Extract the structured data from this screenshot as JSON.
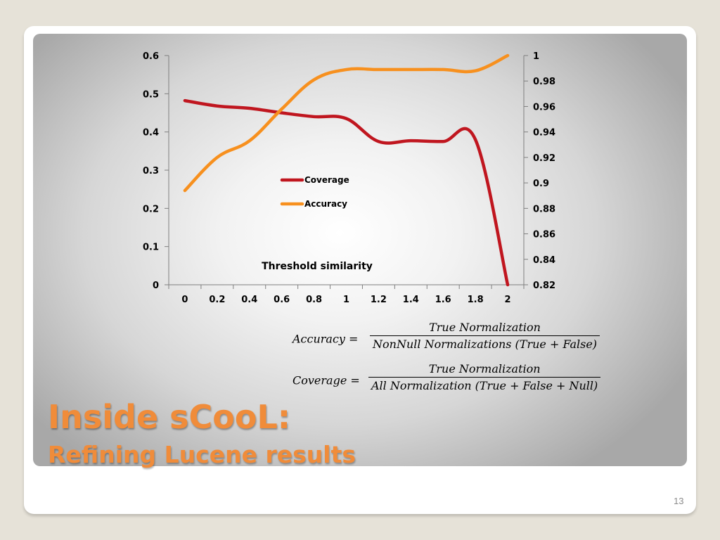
{
  "chart_data": {
    "type": "line",
    "xlabel": "Threshold similarity",
    "x_ticks": [
      "0",
      "0.2",
      "0.4",
      "0.6",
      "0.8",
      "1",
      "1.2",
      "1.4",
      "1.6",
      "1.8",
      "2"
    ],
    "x": [
      0,
      0.2,
      0.4,
      0.6,
      0.8,
      1.0,
      1.2,
      1.4,
      1.6,
      1.8,
      2.0
    ],
    "xlim": [
      0,
      2
    ],
    "y_left": {
      "ylim": [
        0,
        0.6
      ],
      "ticks": [
        "0",
        "0.1",
        "0.2",
        "0.3",
        "0.4",
        "0.5",
        "0.6"
      ]
    },
    "y_right": {
      "ylim": [
        0.82,
        1.0
      ],
      "ticks": [
        "0.82",
        "0.84",
        "0.86",
        "0.88",
        "0.9",
        "0.92",
        "0.94",
        "0.96",
        "0.98",
        "1"
      ]
    },
    "series": [
      {
        "name": "Coverage",
        "axis": "left",
        "color": "#c0161f",
        "values": [
          0.482,
          0.468,
          0.462,
          0.45,
          0.44,
          0.435,
          0.375,
          0.377,
          0.375,
          0.38,
          0.0
        ]
      },
      {
        "name": "Accuracy",
        "axis": "right",
        "color": "#f7901e",
        "values": [
          0.894,
          0.92,
          0.933,
          0.958,
          0.981,
          0.989,
          0.989,
          0.989,
          0.989,
          0.988,
          1.0
        ]
      }
    ],
    "legend_position": "center",
    "grid": false
  },
  "formulas": {
    "accuracy": {
      "lhs": "Accuracy =",
      "numerator": "True Normalization",
      "denominator": "NonNull Normalizations (True + False)"
    },
    "coverage": {
      "lhs": "Coverage =",
      "numerator": "True Normalization",
      "denominator": "All Normalization (True + False + Null)"
    }
  },
  "title": {
    "main": "Inside sCooL:",
    "sub": "Refining Lucene results"
  },
  "page_number": "13",
  "colors": {
    "title": "#f08c3a",
    "coverage_line": "#c0161f",
    "accuracy_line": "#f7901e"
  }
}
